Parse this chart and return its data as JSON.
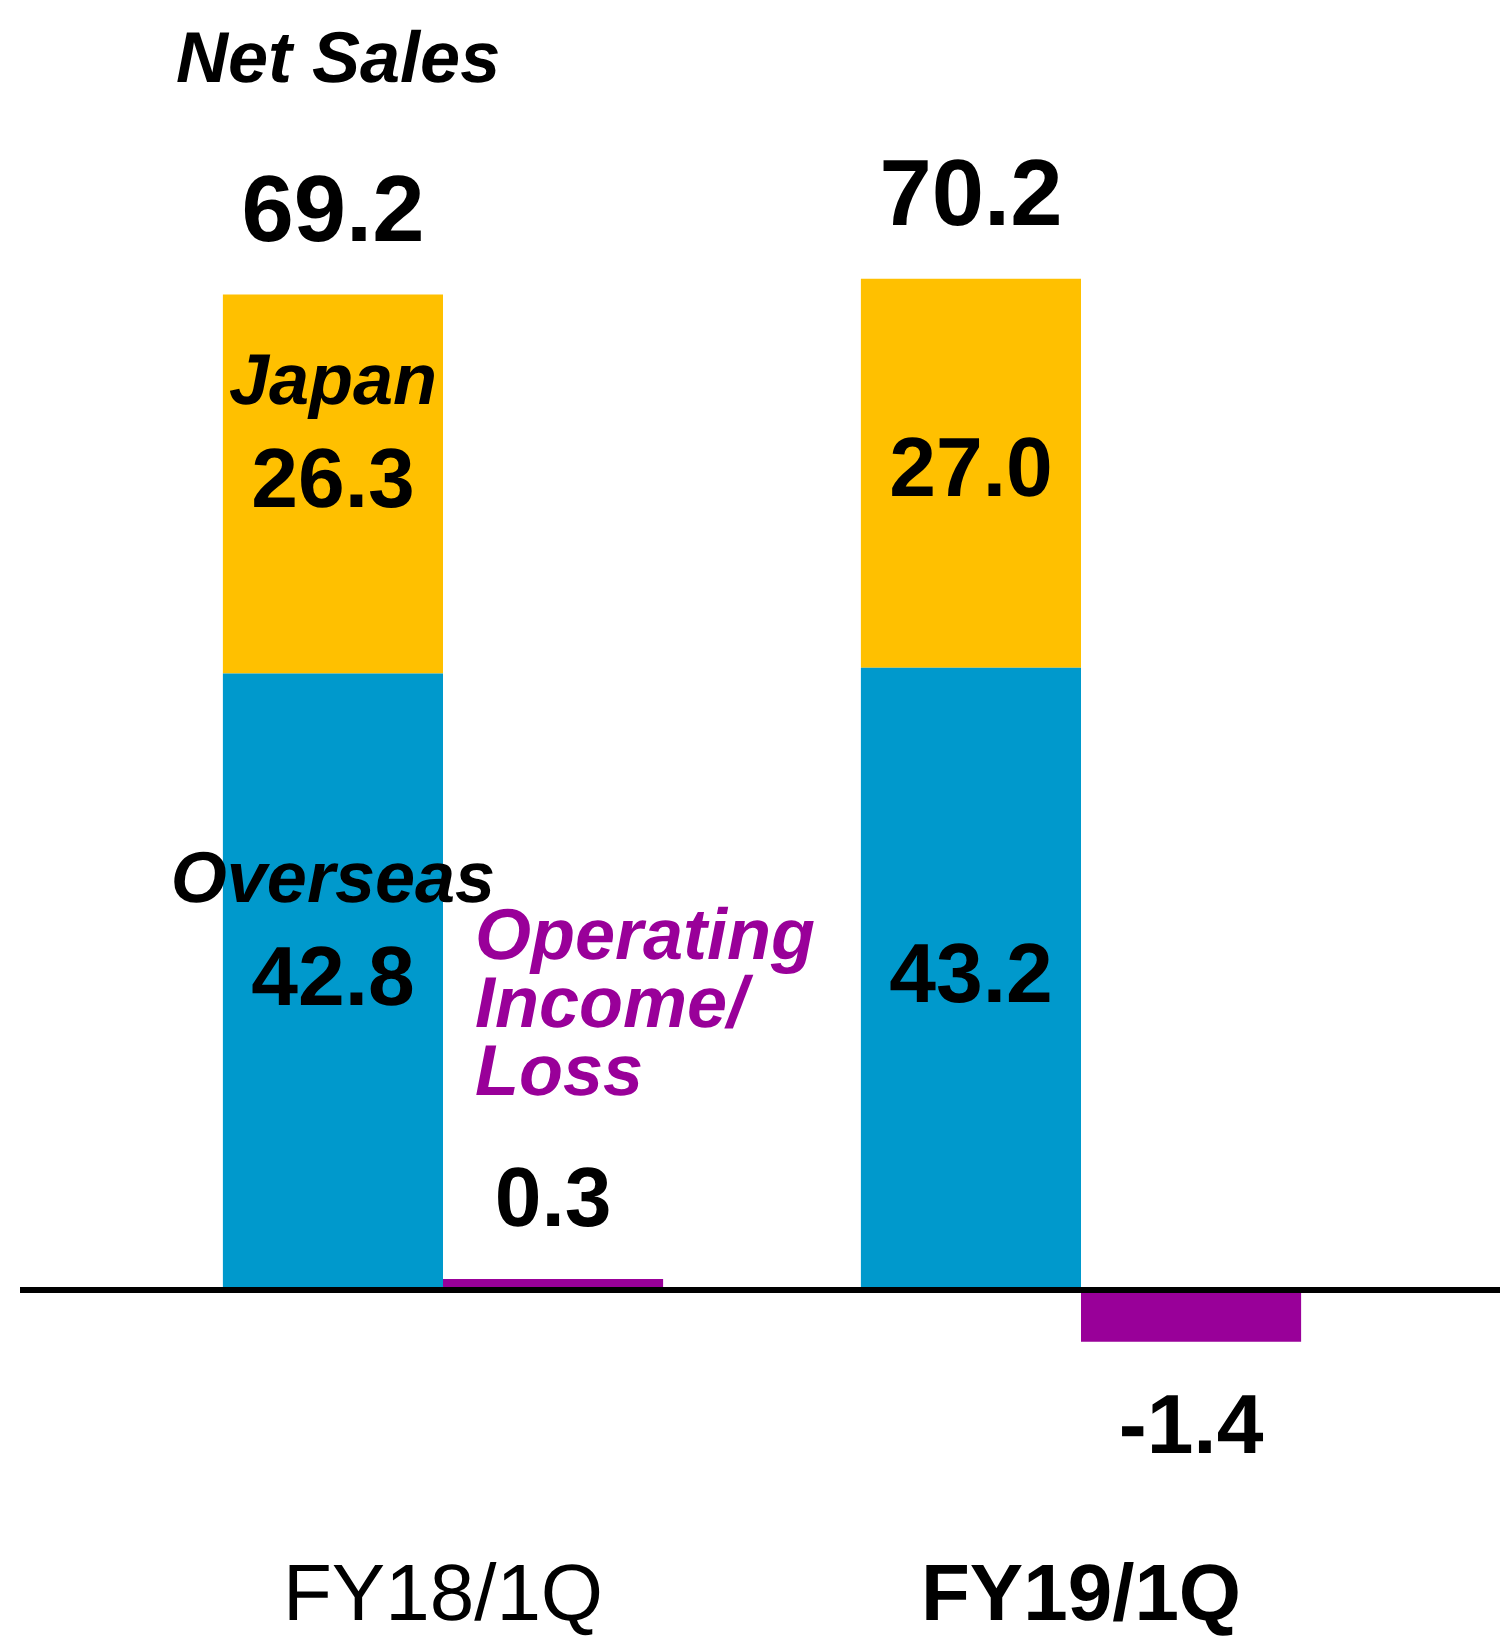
{
  "chart_data": {
    "type": "bar",
    "title": "Net Sales",
    "categories": [
      "FY18/1Q",
      "FY19/1Q"
    ],
    "stacked": true,
    "tick_labels": "x",
    "series": [
      {
        "name": "Overseas",
        "color": "#0099cc",
        "values": [
          42.8,
          43.2
        ],
        "value_labels": [
          "42.8",
          "43.2"
        ]
      },
      {
        "name": "Japan",
        "color": "#ffc000",
        "values": [
          26.3,
          27.0
        ],
        "value_labels": [
          "26.3",
          "27.0"
        ]
      },
      {
        "name": "Operating Income/Loss",
        "color": "#990099",
        "axis": "y2",
        "values": [
          0.3,
          -1.4
        ],
        "value_labels": [
          "0.3",
          "-1.4"
        ]
      }
    ],
    "totals": [
      "69.2",
      "70.2"
    ]
  }
}
